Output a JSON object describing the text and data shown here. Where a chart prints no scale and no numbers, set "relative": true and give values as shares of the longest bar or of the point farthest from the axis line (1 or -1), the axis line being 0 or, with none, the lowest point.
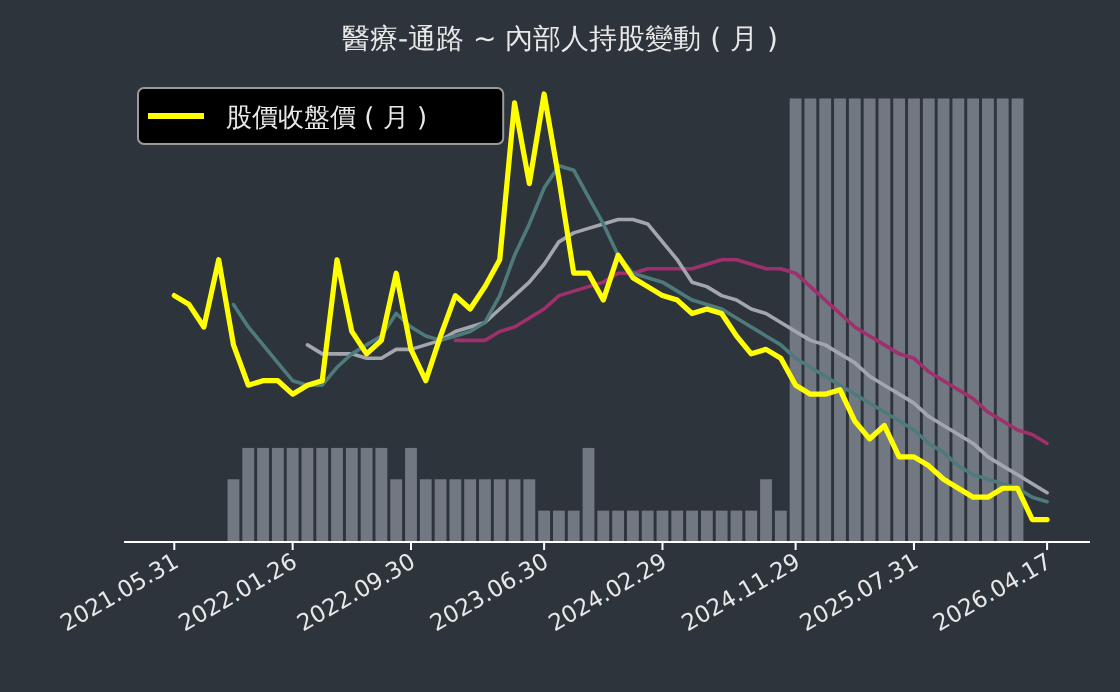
{
  "chart_data": {
    "type": "line",
    "title": "醫療-通路 ~ 內部人持股變動 ( 月 )",
    "relative": true,
    "legend": "top left",
    "categories": [
      "2021.05.31",
      null,
      null,
      null,
      null,
      null,
      null,
      null,
      "2022.01.26",
      null,
      null,
      null,
      null,
      null,
      null,
      null,
      "2022.09.30",
      null,
      null,
      null,
      null,
      null,
      null,
      null,
      null,
      "2023.06.30",
      null,
      null,
      null,
      null,
      null,
      null,
      null,
      "2024.02.29",
      null,
      null,
      null,
      null,
      null,
      null,
      null,
      null,
      "2024.11.29",
      null,
      null,
      null,
      null,
      null,
      null,
      null,
      "2025.07.31",
      null,
      null,
      null,
      null,
      null,
      null,
      null,
      null,
      "2026.04.17"
    ],
    "series": [
      {
        "type": "bar",
        "color": "#8a8f98",
        "values": [
          null,
          null,
          null,
          null,
          0.14,
          0.21,
          0.21,
          0.21,
          0.21,
          0.21,
          0.21,
          0.21,
          0.21,
          0.21,
          0.21,
          0.14,
          0.21,
          0.14,
          0.14,
          0.14,
          0.14,
          0.14,
          0.14,
          0.14,
          0.14,
          0.07,
          0.07,
          0.07,
          0.21,
          0.07,
          0.07,
          0.07,
          0.07,
          0.07,
          0.07,
          0.07,
          0.07,
          0.07,
          0.07,
          0.07,
          0.14,
          0.07,
          0.99,
          0.99,
          0.99,
          0.99,
          0.99,
          0.99,
          0.99,
          0.99,
          0.99,
          0.99,
          0.99,
          0.99,
          0.99,
          0.99,
          0.99,
          0.99,
          null,
          null
        ]
      },
      {
        "color": "#a02f6e",
        "values": [
          null,
          null,
          null,
          null,
          null,
          null,
          null,
          null,
          null,
          null,
          null,
          null,
          null,
          null,
          null,
          null,
          null,
          null,
          null,
          0.45,
          0.45,
          0.45,
          0.47,
          0.48,
          0.5,
          0.52,
          0.55,
          0.56,
          0.57,
          0.58,
          0.6,
          0.6,
          0.61,
          0.61,
          0.61,
          0.61,
          0.62,
          0.63,
          0.63,
          0.62,
          0.61,
          0.61,
          0.6,
          0.57,
          0.54,
          0.51,
          0.48,
          0.46,
          0.44,
          0.42,
          0.41,
          0.38,
          0.36,
          0.34,
          0.32,
          0.29,
          0.27,
          0.25,
          0.24,
          0.22
        ]
      },
      {
        "color": "#a3a6ad",
        "values": [
          null,
          null,
          null,
          null,
          null,
          null,
          null,
          null,
          null,
          0.44,
          0.42,
          0.42,
          0.42,
          0.41,
          0.41,
          0.43,
          0.43,
          0.44,
          0.45,
          0.47,
          0.48,
          0.49,
          0.52,
          0.55,
          0.58,
          0.62,
          0.67,
          0.69,
          0.7,
          0.71,
          0.72,
          0.72,
          0.71,
          0.67,
          0.63,
          0.58,
          0.57,
          0.55,
          0.54,
          0.52,
          0.51,
          0.49,
          0.47,
          0.45,
          0.44,
          0.42,
          0.4,
          0.37,
          0.35,
          0.33,
          0.31,
          0.28,
          0.26,
          0.24,
          0.22,
          0.19,
          0.17,
          0.15,
          0.13,
          0.11
        ]
      },
      {
        "color": "#4f7a7c",
        "values": [
          null,
          null,
          null,
          null,
          0.53,
          0.48,
          0.44,
          0.4,
          0.36,
          0.35,
          0.35,
          0.39,
          0.42,
          0.44,
          0.46,
          0.51,
          0.48,
          0.46,
          0.45,
          0.46,
          0.47,
          0.49,
          0.55,
          0.64,
          0.71,
          0.79,
          0.84,
          0.83,
          0.77,
          0.71,
          0.64,
          0.6,
          0.59,
          0.58,
          0.56,
          0.54,
          0.53,
          0.52,
          0.5,
          0.48,
          0.46,
          0.44,
          0.41,
          0.39,
          0.37,
          0.35,
          0.33,
          0.31,
          0.29,
          0.27,
          0.25,
          0.22,
          0.2,
          0.17,
          0.15,
          0.14,
          0.13,
          0.12,
          0.1,
          0.09
        ]
      },
      {
        "name": "股價收盤價 ( 月 )",
        "color": "#ffff00",
        "values": [
          0.55,
          0.53,
          0.48,
          0.63,
          0.44,
          0.35,
          0.36,
          0.36,
          0.33,
          0.35,
          0.36,
          0.63,
          0.47,
          0.42,
          0.45,
          0.6,
          0.43,
          0.36,
          0.46,
          0.55,
          0.52,
          0.57,
          0.63,
          0.98,
          0.8,
          1,
          0.81,
          0.6,
          0.6,
          0.54,
          0.64,
          0.59,
          0.57,
          0.55,
          0.54,
          0.51,
          0.52,
          0.51,
          0.46,
          0.42,
          0.43,
          0.41,
          0.35,
          0.33,
          0.33,
          0.34,
          0.27,
          0.23,
          0.26,
          0.19,
          0.19,
          0.17,
          0.14,
          0.12,
          0.1,
          0.1,
          0.12,
          0.12,
          0.05,
          0.05
        ]
      }
    ]
  }
}
